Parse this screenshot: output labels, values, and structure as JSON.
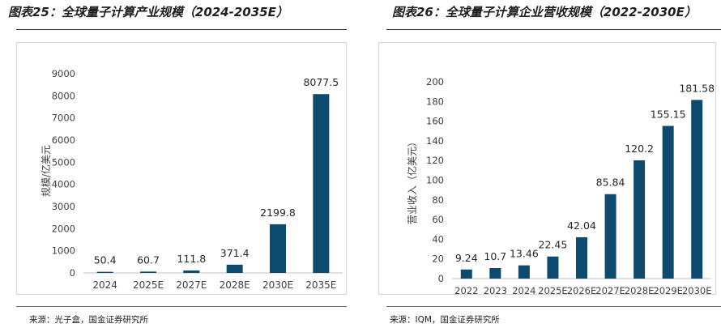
{
  "charts": [
    {
      "figure_title": "图表25：全球量子计算产业规模（2024-2035E）",
      "source": "来源：光子盒，国金证券研究所",
      "chart_data": {
        "type": "bar",
        "title": "图表25：全球量子计算产业规模（2024-2035E）",
        "xlabel": "",
        "ylabel": "规模/亿美元",
        "categories": [
          "2024",
          "2025E",
          "2027E",
          "2028E",
          "2030E",
          "2035E"
        ],
        "values": [
          50.4,
          60.7,
          111.8,
          371.4,
          2199.8,
          8077.5
        ],
        "value_labels": [
          "50.4",
          "60.7",
          "111.8",
          "371.4",
          "2199.8",
          "8077.5"
        ],
        "ylim": [
          0,
          9000
        ],
        "yticks": [
          "0",
          "1000",
          "2000",
          "3000",
          "4000",
          "5000",
          "6000",
          "7000",
          "8000",
          "9000"
        ],
        "bar_color": "#0e4a6e",
        "grid": false
      }
    },
    {
      "figure_title": "图表26：全球量子计算企业营收规模（2022-2030E）",
      "source": "来源：IQM，国金证券研究所",
      "chart_data": {
        "type": "bar",
        "title": "图表26：全球量子计算企业营收规模（2022-2030E）",
        "xlabel": "",
        "ylabel": "营业收入（亿美元）",
        "categories": [
          "2022",
          "2023",
          "2024",
          "2025E",
          "2026E",
          "2027E",
          "2028E",
          "2029E",
          "2030E"
        ],
        "values": [
          9.24,
          10.7,
          13.46,
          22.45,
          42.04,
          85.84,
          120.2,
          155.15,
          181.58
        ],
        "value_labels": [
          "9.24",
          "10.7",
          "13.46",
          "22.45",
          "42.04",
          "85.84",
          "120.2",
          "155.15",
          "181.58"
        ],
        "ylim": [
          0,
          200
        ],
        "yticks": [
          "0",
          "20",
          "40",
          "60",
          "80",
          "100",
          "120",
          "140",
          "160",
          "180",
          "200"
        ],
        "bar_color": "#0e4a6e",
        "grid": false
      }
    }
  ]
}
